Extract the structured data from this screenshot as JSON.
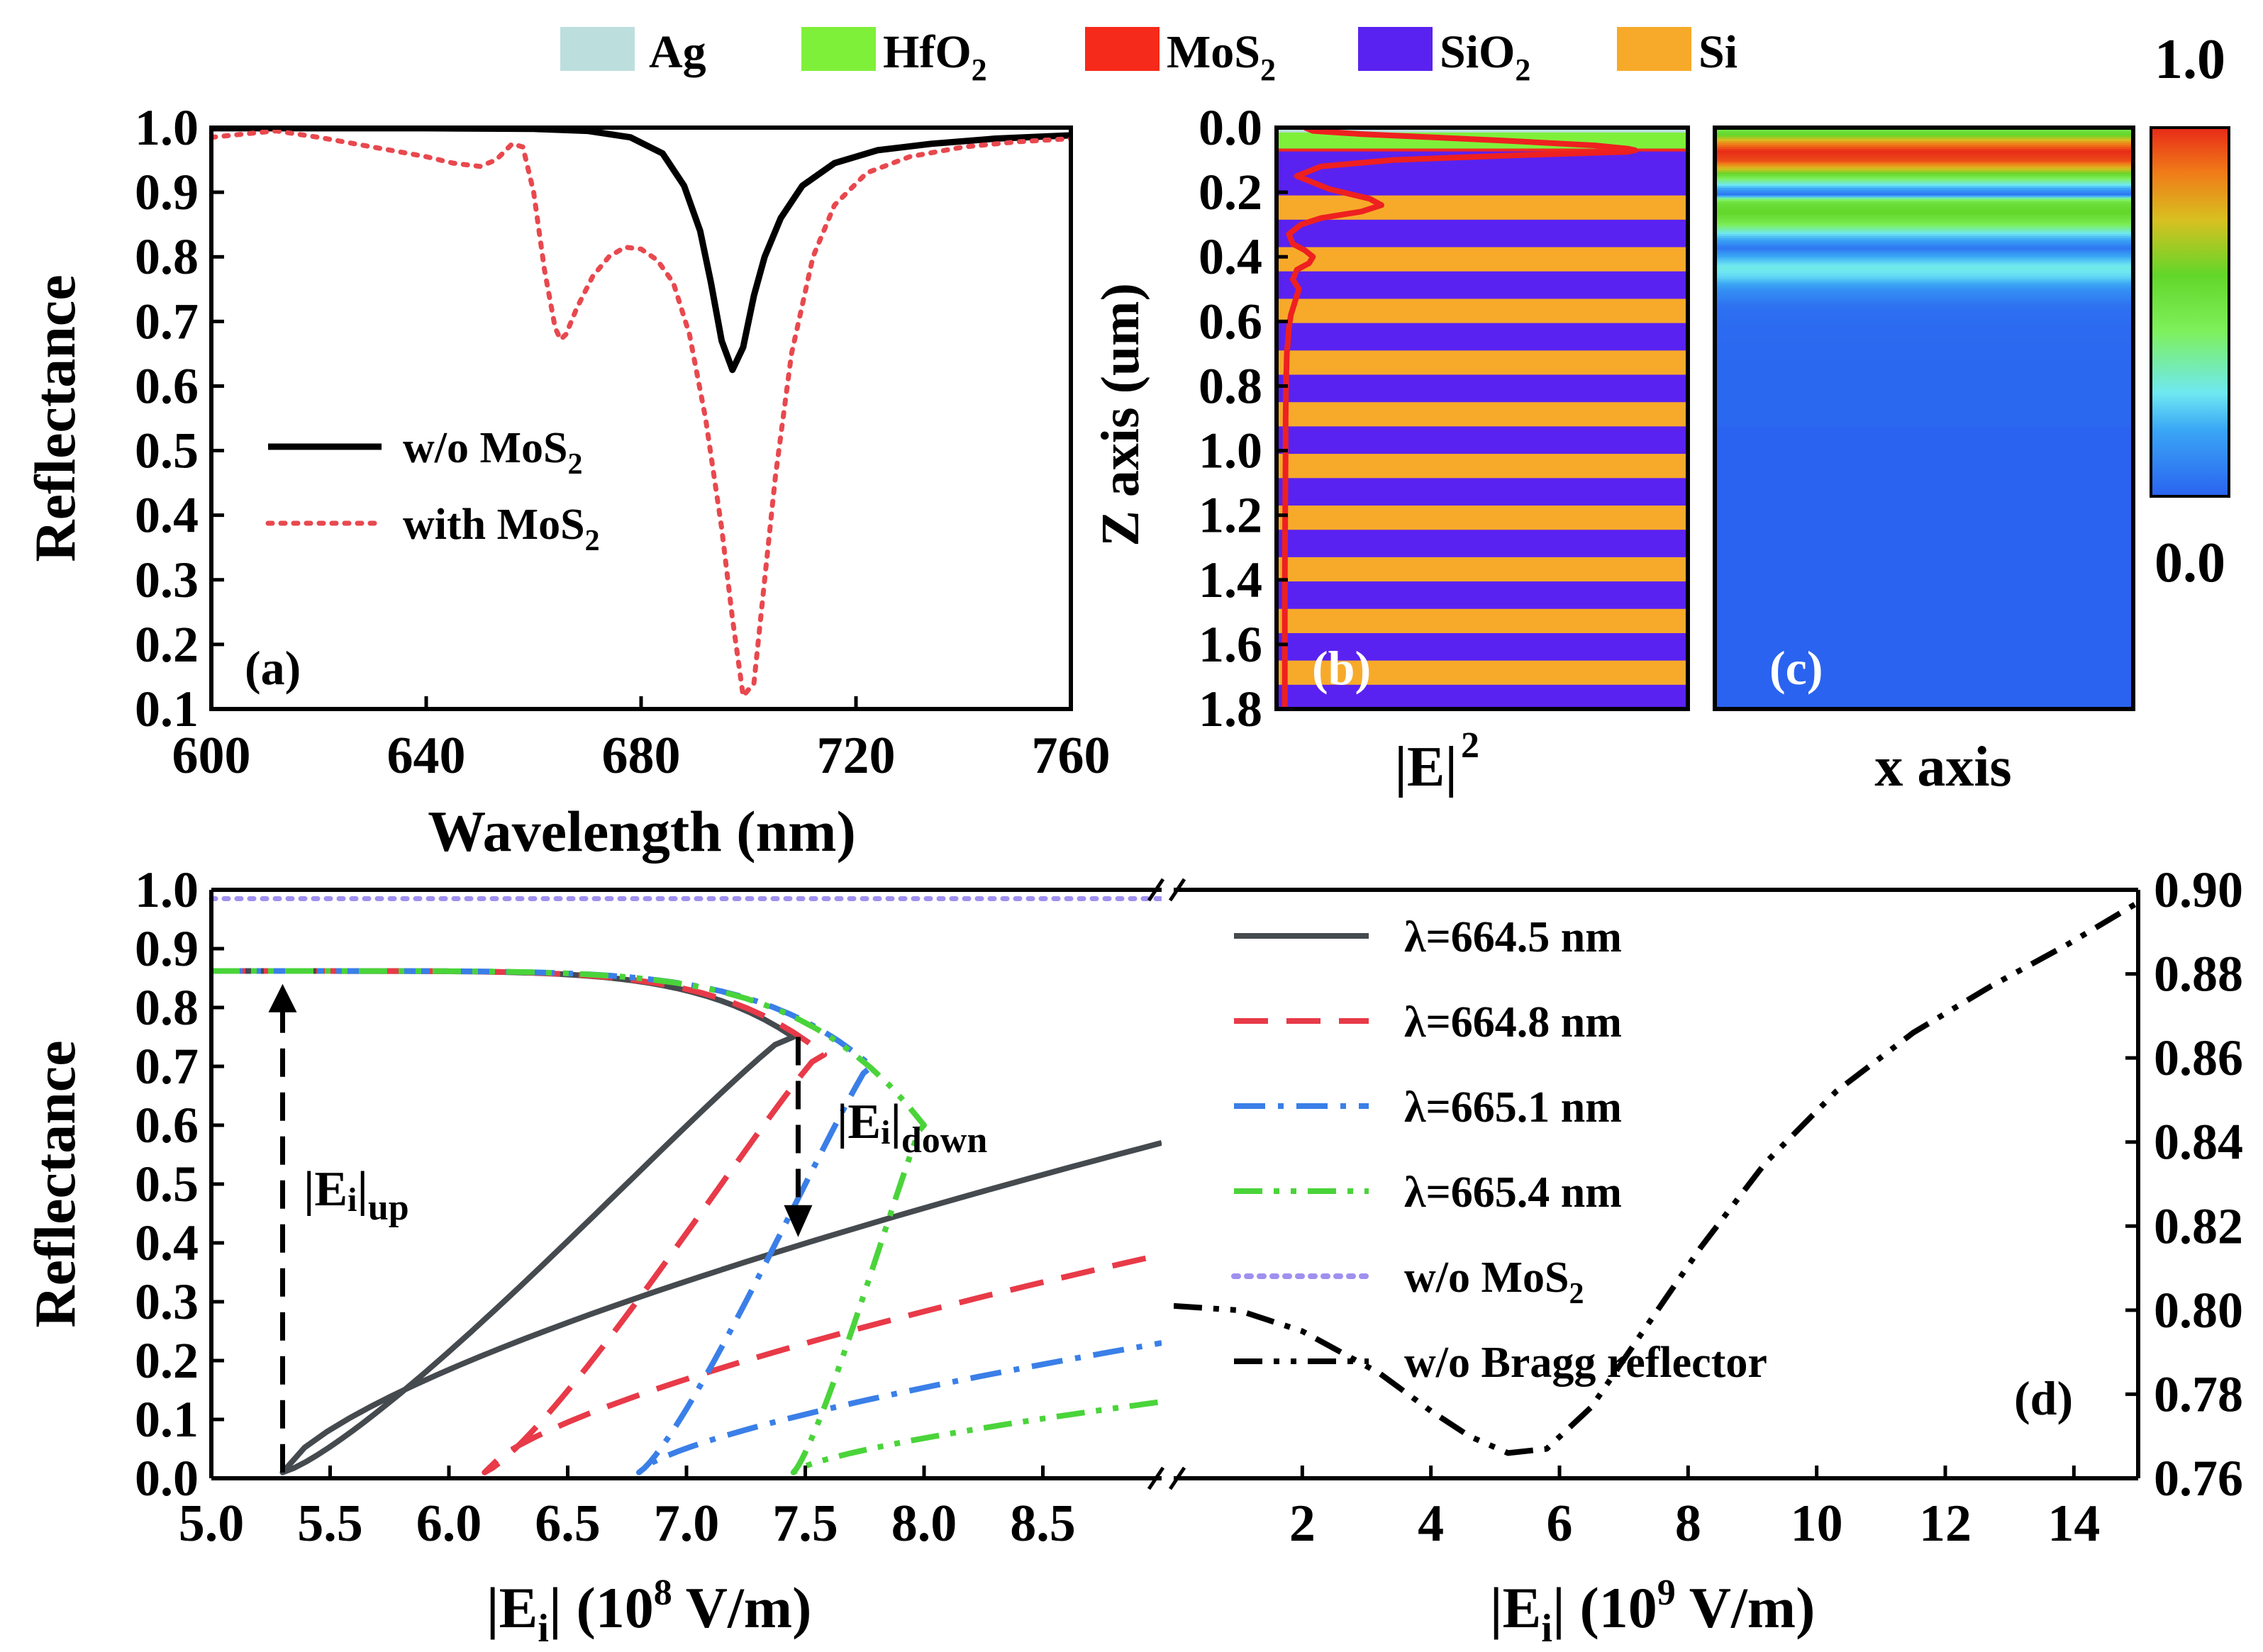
{
  "legend": {
    "materials": [
      {
        "name": "Ag",
        "sub": "",
        "color": "#bcdfdd"
      },
      {
        "name": "HfO",
        "sub": "2",
        "color": "#7ff03a"
      },
      {
        "name": "MoS",
        "sub": "2",
        "color": "#f52a1a"
      },
      {
        "name": "SiO",
        "sub": "2",
        "color": "#5a22f0"
      },
      {
        "name": "Si",
        "sub": "",
        "color": "#f7aa2a"
      }
    ]
  },
  "colorbar": {
    "max_label": "1.0",
    "min_label": "0.0"
  },
  "chart_data": [
    {
      "id": "a",
      "type": "line",
      "panel_label": "(a)",
      "xlabel": "Wavelength (nm)",
      "ylabel": "Reflectance",
      "xlim": [
        600,
        760
      ],
      "ylim": [
        0.1,
        1.0
      ],
      "xticks": [
        "600",
        "640",
        "680",
        "720",
        "760"
      ],
      "yticks": [
        "0.1",
        "0.2",
        "0.3",
        "0.4",
        "0.5",
        "0.6",
        "0.7",
        "0.8",
        "0.9",
        "1.0"
      ],
      "legend_position": "center-left",
      "series": [
        {
          "name_main": "w/o  MoS",
          "name_sub": "2",
          "style": "solid",
          "color": "#000000",
          "x": [
            600,
            640,
            660,
            670,
            678,
            684,
            688,
            691,
            693,
            695,
            697,
            699,
            701,
            703,
            706,
            710,
            716,
            724,
            734,
            746,
            760
          ],
          "y": [
            0.999,
            0.999,
            0.998,
            0.995,
            0.985,
            0.96,
            0.91,
            0.84,
            0.76,
            0.67,
            0.625,
            0.66,
            0.74,
            0.8,
            0.86,
            0.91,
            0.945,
            0.965,
            0.975,
            0.983,
            0.988
          ]
        },
        {
          "name_main": "with  MoS",
          "name_sub": "2",
          "style": "dotted",
          "color": "#e8484e",
          "x": [
            600,
            606,
            612,
            620,
            630,
            640,
            645,
            650,
            653,
            656,
            658,
            660,
            662,
            664,
            665,
            666,
            668,
            671,
            674,
            677,
            680,
            683,
            686,
            689,
            692,
            695,
            697,
            699,
            701,
            703,
            705,
            708,
            712,
            716,
            722,
            730,
            740,
            750,
            760
          ],
          "y": [
            0.985,
            0.99,
            0.995,
            0.985,
            0.97,
            0.955,
            0.945,
            0.94,
            0.95,
            0.975,
            0.97,
            0.9,
            0.78,
            0.69,
            0.672,
            0.68,
            0.72,
            0.77,
            0.8,
            0.815,
            0.812,
            0.795,
            0.76,
            0.68,
            0.55,
            0.38,
            0.24,
            0.12,
            0.14,
            0.3,
            0.46,
            0.65,
            0.8,
            0.88,
            0.93,
            0.955,
            0.97,
            0.978,
            0.983
          ]
        }
      ]
    },
    {
      "id": "b",
      "type": "line",
      "panel_label": "(b)",
      "xlabel_main": "|E|",
      "xlabel_sup": "2",
      "ylabel": "Z axis (um)",
      "ylim": [
        0.0,
        1.8
      ],
      "yticks": [
        "0.0",
        "0.2",
        "0.4",
        "0.6",
        "0.8",
        "1.0",
        "1.2",
        "1.4",
        "1.6",
        "1.8"
      ],
      "layers": {
        "ag": [
          0,
          0.015
        ],
        "hfo2": [
          0.015,
          0.065
        ],
        "mos2": [
          0.065,
          0.072
        ],
        "si_pairs": [
          [
            0.21,
            0.285
          ],
          [
            0.37,
            0.445
          ],
          [
            0.53,
            0.605
          ],
          [
            0.69,
            0.765
          ],
          [
            0.85,
            0.925
          ],
          [
            1.01,
            1.085
          ],
          [
            1.17,
            1.245
          ],
          [
            1.33,
            1.405
          ],
          [
            1.49,
            1.565
          ],
          [
            1.65,
            1.725
          ]
        ]
      },
      "series": [
        {
          "name": "|E|^2",
          "color": "#ee2020",
          "z": [
            0.0,
            0.01,
            0.02,
            0.04,
            0.055,
            0.065,
            0.07,
            0.075,
            0.085,
            0.1,
            0.12,
            0.15,
            0.19,
            0.22,
            0.24,
            0.26,
            0.28,
            0.3,
            0.33,
            0.36,
            0.38,
            0.4,
            0.42,
            0.44,
            0.47,
            0.5,
            0.54,
            0.58,
            0.62,
            0.66,
            0.7,
            0.8,
            0.9,
            1.0,
            1.2,
            1.4,
            1.6,
            1.8
          ],
          "e": [
            0.06,
            0.08,
            0.2,
            0.55,
            0.78,
            0.86,
            0.88,
            0.86,
            0.6,
            0.28,
            0.1,
            0.04,
            0.12,
            0.22,
            0.25,
            0.2,
            0.1,
            0.05,
            0.02,
            0.03,
            0.06,
            0.08,
            0.07,
            0.04,
            0.03,
            0.045,
            0.035,
            0.025,
            0.02,
            0.018,
            0.015,
            0.013,
            0.012,
            0.012,
            0.011,
            0.01,
            0.01,
            0.01
          ]
        }
      ]
    },
    {
      "id": "c",
      "type": "heatmap",
      "panel_label": "(c)",
      "xlabel": "x axis",
      "ylim": [
        0.0,
        1.8
      ],
      "profile": [
        {
          "z": 0.0,
          "v": 0.5
        },
        {
          "z": 0.02,
          "v": 0.6
        },
        {
          "z": 0.045,
          "v": 0.85
        },
        {
          "z": 0.07,
          "v": 1.0
        },
        {
          "z": 0.1,
          "v": 0.95
        },
        {
          "z": 0.13,
          "v": 0.7
        },
        {
          "z": 0.16,
          "v": 0.4
        },
        {
          "z": 0.19,
          "v": 0.15
        },
        {
          "z": 0.205,
          "v": 0.05
        },
        {
          "z": 0.215,
          "v": 0.35
        },
        {
          "z": 0.23,
          "v": 0.55
        },
        {
          "z": 0.26,
          "v": 0.6
        },
        {
          "z": 0.29,
          "v": 0.5
        },
        {
          "z": 0.33,
          "v": 0.25
        },
        {
          "z": 0.37,
          "v": 0.05
        },
        {
          "z": 0.4,
          "v": 0.2
        },
        {
          "z": 0.43,
          "v": 0.3
        },
        {
          "z": 0.46,
          "v": 0.25
        },
        {
          "z": 0.5,
          "v": 0.12
        },
        {
          "z": 0.55,
          "v": 0.04
        },
        {
          "z": 0.62,
          "v": 0.02
        },
        {
          "z": 0.7,
          "v": 0.015
        },
        {
          "z": 1.8,
          "v": 0.0
        }
      ]
    },
    {
      "id": "d",
      "type": "line",
      "panel_label": "(d)",
      "ylabel": "Reflectance",
      "left_xlabel_main": "|E",
      "left_xlabel_sub": "i",
      "left_xlabel_rest": "| (10",
      "left_xlabel_sup": "8",
      "left_xlabel_unit": " V/m)",
      "right_xlabel_main": "|E",
      "right_xlabel_sub": "i",
      "right_xlabel_rest": "| (10",
      "right_xlabel_sup": "9",
      "right_xlabel_unit": " V/m)",
      "left_xlim": [
        5.0,
        9.0
      ],
      "right_xlim": [
        0.0,
        15.0
      ],
      "ylim": [
        0.0,
        1.0
      ],
      "y2lim": [
        0.76,
        0.9
      ],
      "left_xticks": [
        "5.0",
        "5.5",
        "6.0",
        "6.5",
        "7.0",
        "7.5",
        "8.0",
        "8.5"
      ],
      "right_xticks": [
        "2",
        "4",
        "6",
        "8",
        "10",
        "12",
        "14"
      ],
      "yticks": [
        "0.0",
        "0.1",
        "0.2",
        "0.3",
        "0.4",
        "0.5",
        "0.6",
        "0.7",
        "0.8",
        "0.9",
        "1.0"
      ],
      "y2ticks": [
        "0.76",
        "0.78",
        "0.80",
        "0.82",
        "0.84",
        "0.86",
        "0.88",
        "0.90"
      ],
      "annotations": {
        "up_main": "|E",
        "up_sub": "i",
        "up_bar": "|",
        "up_tag": "up",
        "down_main": "|E",
        "down_sub": "i",
        "down_bar": "|",
        "down_tag": "down"
      },
      "series": [
        {
          "name": "λ=664.5 nm",
          "color": "#454a4f",
          "style": "solid",
          "lambda_shift": 0,
          "xturn_hi": 7.45,
          "yturn_hi": 0.75,
          "xturn_lo": 5.3,
          "ytop_start": 0.862
        },
        {
          "name": "λ=664.8 nm",
          "color": "#e83a48",
          "style": "dashed",
          "lambda_shift": 0.3,
          "xturn_hi": 7.58,
          "yturn_hi": 0.72,
          "xturn_lo": 6.15,
          "ytop_start": 0.862
        },
        {
          "name": "λ=665.1 nm",
          "color": "#3a7fe8",
          "style": "dashdot",
          "lambda_shift": 0.6,
          "xturn_hi": 7.78,
          "yturn_hi": 0.7,
          "xturn_lo": 6.8,
          "ytop_start": 0.862
        },
        {
          "name": "λ=665.4 nm",
          "color": "#4ad43a",
          "style": "dashdotdot",
          "lambda_shift": 0.9,
          "xturn_hi": 8.0,
          "yturn_hi": 0.6,
          "xturn_lo": 7.45,
          "ytop_start": 0.862
        },
        {
          "name_main": "w/o MoS",
          "name_sub": "2",
          "color": "#9f90f0",
          "style": "dotted",
          "y": 0.985
        },
        {
          "name": "w/o Bragg reflector",
          "color": "#000000",
          "style": "dashdotdot",
          "axis": "right",
          "x": [
            0.0,
            1.0,
            2.0,
            2.6,
            3.2,
            4.0,
            4.6,
            5.2,
            5.8,
            6.5,
            7.3,
            8.2,
            9.2,
            10.3,
            11.5,
            12.7,
            13.9,
            15.0
          ],
          "y": [
            0.801,
            0.8,
            0.795,
            0.79,
            0.785,
            0.776,
            0.77,
            0.766,
            0.767,
            0.777,
            0.795,
            0.815,
            0.835,
            0.852,
            0.866,
            0.877,
            0.887,
            0.897
          ]
        }
      ]
    }
  ]
}
